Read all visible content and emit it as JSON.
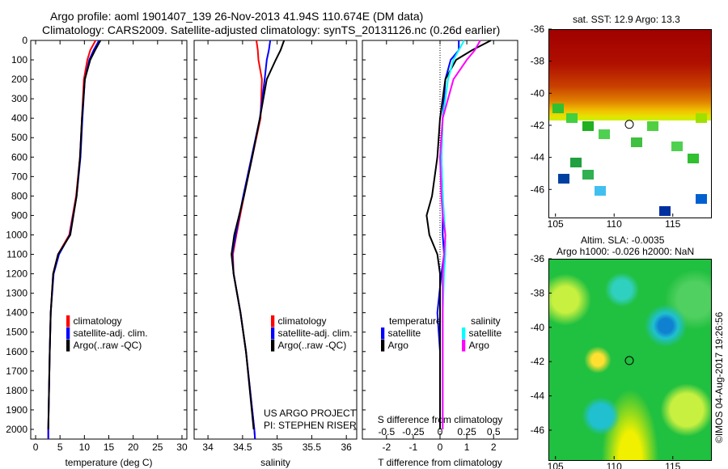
{
  "title_line1": "Argo profile: aoml 1901407_139 26-Nov-2013 41.94S 110.674E (DM data)",
  "title_line2": "Climatology: CARS2009. Satellite-adjusted climatology: synTS_20131126.nc (0.26d earlier)",
  "depth_ticks": [
    "0",
    "100",
    "200",
    "300",
    "400",
    "500",
    "600",
    "700",
    "800",
    "900",
    "1000",
    "1100",
    "1200",
    "1300",
    "1400",
    "1500",
    "1600",
    "1700",
    "1800",
    "1900",
    "2000"
  ],
  "legend": {
    "clim": "climatology",
    "sat": "satellite-adj. clim.",
    "argo": "Argo(..raw -QC)"
  },
  "diff_legend": {
    "temperature": "temperature",
    "salinity": "salinity",
    "satellite": "satellite",
    "argo": "Argo"
  },
  "credit1": "US ARGO PROJECT",
  "credit2": "PI: STEPHEN RISER",
  "map1_title": "sat. SST: 12.9 Argo: 13.3",
  "map2_title1": "Altim. SLA: -0.0035",
  "map2_title2": "Argo h1000: -0.026 h2000: NaN",
  "watermark": "©IMOS 04-Aug-2017 19:26:56",
  "map_lat_ticks": [
    "-36",
    "-38",
    "-40",
    "-42",
    "-44",
    "-46"
  ],
  "map_lon_ticks": [
    "105",
    "110",
    "115"
  ],
  "chart_data": [
    {
      "type": "line",
      "xlabel": "temperature (deg C)",
      "xlim": [
        -1,
        31
      ],
      "ylim": [
        2050,
        0
      ],
      "xticks": [
        "0",
        "5",
        "10",
        "15",
        "20",
        "25",
        "30"
      ],
      "depth": [
        0,
        50,
        100,
        200,
        400,
        600,
        800,
        1000,
        1100,
        1200,
        1400,
        1600,
        2000,
        2050
      ],
      "series": [
        {
          "name": "climatology",
          "color": "#ff0000",
          "values": [
            12.3,
            11.2,
            10.6,
            9.9,
            9.5,
            9.1,
            8.3,
            6.9,
            4.6,
            3.6,
            3.1,
            2.9,
            2.6,
            2.6
          ]
        },
        {
          "name": "satellite-adj. clim.",
          "color": "#0000ff",
          "values": [
            13.0,
            11.9,
            11.0,
            10.1,
            9.6,
            9.2,
            8.4,
            7.0,
            4.8,
            3.7,
            3.1,
            2.9,
            2.6,
            2.6
          ]
        },
        {
          "name": "Argo",
          "color": "#000000",
          "values": [
            13.3,
            12.2,
            11.2,
            10.1,
            9.5,
            9.1,
            8.4,
            7.1,
            4.6,
            3.6,
            3.1,
            2.9,
            2.6,
            null
          ]
        }
      ]
    },
    {
      "type": "line",
      "xlabel": "salinity",
      "xlim": [
        33.8,
        36.15
      ],
      "ylim": [
        2050,
        0
      ],
      "xticks": [
        "34",
        "34.5",
        "35",
        "35.5",
        "36"
      ],
      "depth": [
        0,
        50,
        100,
        200,
        400,
        600,
        800,
        1000,
        1100,
        1200,
        1400,
        1600,
        2000,
        2050
      ],
      "series": [
        {
          "name": "climatology",
          "color": "#ff0000",
          "values": [
            34.7,
            34.72,
            34.73,
            34.78,
            34.76,
            34.64,
            34.52,
            34.41,
            34.36,
            34.37,
            34.47,
            34.55,
            34.67,
            34.68
          ]
        },
        {
          "name": "satellite-adj. clim.",
          "color": "#0000ff",
          "values": [
            34.9,
            34.88,
            34.85,
            34.82,
            34.75,
            34.63,
            34.51,
            34.4,
            34.35,
            34.37,
            34.47,
            34.55,
            34.67,
            34.68
          ]
        },
        {
          "name": "Argo",
          "color": "#000000",
          "values": [
            35.1,
            35.05,
            34.98,
            34.85,
            34.75,
            34.64,
            34.52,
            34.38,
            34.34,
            34.37,
            34.47,
            34.55,
            34.66,
            null
          ]
        }
      ]
    },
    {
      "type": "line",
      "xlabel": "T difference from climatology",
      "x2label": "S difference from climatology",
      "xlim": [
        -2.9,
        2.9
      ],
      "ylim": [
        2050,
        0
      ],
      "xticks": [
        "-2",
        "-1",
        "0",
        "1",
        "2"
      ],
      "x2ticks": [
        "-0.5",
        "-0.25",
        "0",
        "0.25",
        "0.5"
      ],
      "depth": [
        0,
        50,
        100,
        200,
        400,
        600,
        800,
        900,
        1000,
        1100,
        1200,
        1400,
        1600,
        2000
      ],
      "series": [
        {
          "name": "temperature satellite",
          "color": "#0000ff",
          "values": [
            0.7,
            0.7,
            0.4,
            0.2,
            0.1,
            0.05,
            0.1,
            0.1,
            0.1,
            0.15,
            0.05,
            -0.1,
            0,
            0
          ]
        },
        {
          "name": "temperature Argo",
          "color": "#000000",
          "values": [
            1.9,
            1.2,
            0.6,
            0.2,
            0,
            -0.1,
            -0.3,
            -0.5,
            -0.4,
            -0.1,
            0,
            0,
            0,
            0
          ]
        },
        {
          "name": "salinity satellite",
          "color": "#00ffff",
          "values": [
            0.9,
            0.7,
            0.5,
            0.3,
            0.1,
            0.05,
            0.1,
            0.15,
            0.2,
            0.2,
            0.15,
            0.1,
            0.1,
            0.1
          ]
        },
        {
          "name": "salinity Argo",
          "color": "#ff00ff",
          "values": [
            1.5,
            1.3,
            1.0,
            0.5,
            0.1,
            0,
            0.05,
            0.1,
            0.2,
            0.15,
            0.1,
            0.1,
            0.1,
            0.1
          ]
        }
      ]
    }
  ]
}
